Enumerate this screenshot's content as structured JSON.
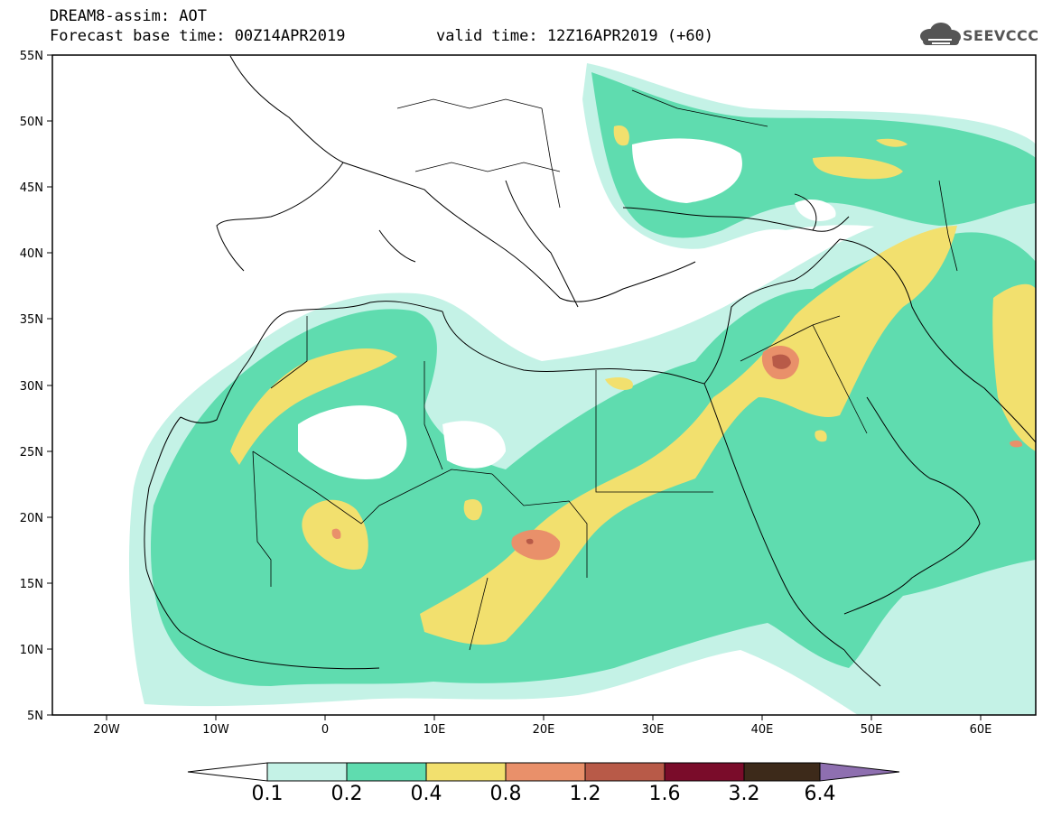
{
  "header": {
    "title": "DREAM8-assim: AOT",
    "base_time": "Forecast base time: 00Z14APR2019",
    "valid_time": "valid time: 12Z16APR2019 (+60)",
    "logo_text": "SEEVCCC"
  },
  "map": {
    "lat_labels": [
      "55N",
      "50N",
      "45N",
      "40N",
      "35N",
      "30N",
      "25N",
      "20N",
      "15N",
      "10N",
      "5N"
    ],
    "lon_labels": [
      "20W",
      "10W",
      "0",
      "10E",
      "20E",
      "30E",
      "40E",
      "50E",
      "60E"
    ],
    "lon_range": [
      -25,
      65
    ],
    "lat_range": [
      5,
      55
    ]
  },
  "colorbar": {
    "labels": [
      "0.1",
      "0.2",
      "0.4",
      "0.8",
      "1.2",
      "1.6",
      "3.2",
      "6.4"
    ],
    "colors": [
      "#c4f2e6",
      "#5fdcaf",
      "#f2e06e",
      "#e9906a",
      "#b85a48",
      "#7a0c2a",
      "#3d2a1a",
      "#8e6fb0"
    ]
  }
}
